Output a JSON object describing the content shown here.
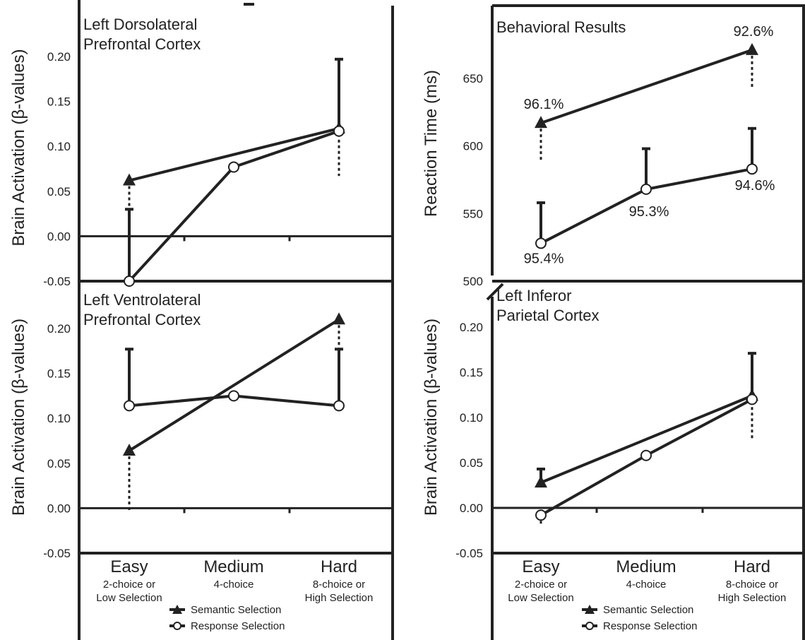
{
  "conditions": [
    {
      "name": "Easy",
      "sub1": "2-choice or",
      "sub2": "Low Selection"
    },
    {
      "name": "Medium",
      "sub1": "4-choice",
      "sub2": ""
    },
    {
      "name": "Hard",
      "sub1": "8-choice or",
      "sub2": "High Selection"
    }
  ],
  "legend": {
    "semantic": "Semantic Selection",
    "response": "Response Selection"
  },
  "colors": {
    "ink": "#222222",
    "background": "#ffffff"
  },
  "chart_data": [
    {
      "id": "dlpfc",
      "type": "line",
      "title_lines": [
        "Left Dorsolateral",
        "Prefrontal Cortex"
      ],
      "ylabel": "Brain Activation (β-values)",
      "ylim": [
        -0.05,
        0.2
      ],
      "yticks": [
        -0.05,
        0.0,
        0.05,
        0.1,
        0.15,
        0.2
      ],
      "yticklabels": [
        "-0.05",
        "0.00",
        "0.05",
        "0.10",
        "0.15",
        "0.20"
      ],
      "zero_line": true,
      "categories": [
        "Easy",
        "Medium",
        "Hard"
      ],
      "series": [
        {
          "name": "Semantic Selection",
          "marker": "triangle",
          "points": [
            {
              "x": 0,
              "y": 0.062
            },
            {
              "x": 2,
              "y": 0.12
            }
          ],
          "errors": [
            {
              "x": 0,
              "lo": 0.008
            },
            {
              "x": 2,
              "lo": 0.067
            }
          ]
        },
        {
          "name": "Response Selection",
          "marker": "circle",
          "points": [
            {
              "x": 0,
              "y": -0.05
            },
            {
              "x": 1,
              "y": 0.077
            },
            {
              "x": 2,
              "y": 0.117
            }
          ],
          "errors": [
            {
              "x": 0,
              "hi": 0.03
            },
            {
              "x": 2,
              "hi": 0.197
            }
          ]
        }
      ]
    },
    {
      "id": "behavior",
      "type": "line",
      "title_lines": [
        "Behavioral Results"
      ],
      "ylabel": "Reaction Time (ms)",
      "ylim": [
        500,
        680
      ],
      "yticks": [
        500,
        550,
        600,
        650
      ],
      "yticklabels": [
        "500",
        "550",
        "600",
        "650"
      ],
      "zero_line": false,
      "categories": [
        "Easy",
        "Medium",
        "Hard"
      ],
      "series": [
        {
          "name": "Semantic Selection",
          "marker": "triangle",
          "points": [
            {
              "x": 0,
              "y": 617
            },
            {
              "x": 2,
              "y": 671
            }
          ],
          "errors": [
            {
              "x": 0,
              "lo": 588
            },
            {
              "x": 2,
              "lo": 642
            }
          ],
          "labels": [
            "96.1%",
            null,
            "92.6%"
          ]
        },
        {
          "name": "Response Selection",
          "marker": "circle",
          "points": [
            {
              "x": 0,
              "y": 528
            },
            {
              "x": 1,
              "y": 568
            },
            {
              "x": 2,
              "y": 583
            }
          ],
          "errors": [
            {
              "x": 0,
              "hi": 558
            },
            {
              "x": 1,
              "hi": 598
            },
            {
              "x": 2,
              "hi": 613
            }
          ],
          "labels": [
            "95.4%",
            "95.3%",
            "94.6%"
          ]
        }
      ]
    },
    {
      "id": "vlpfc",
      "type": "line",
      "title_lines": [
        "Left Ventrolateral",
        "Prefrontal Cortex"
      ],
      "ylabel": "Brain Activation (β-values)",
      "ylim": [
        -0.05,
        0.22
      ],
      "yticks": [
        -0.05,
        0.0,
        0.05,
        0.1,
        0.15,
        0.2
      ],
      "yticklabels": [
        "-0.05",
        "0.00",
        "0.05",
        "0.10",
        "0.15",
        "0.20"
      ],
      "zero_line": true,
      "categories": [
        "Easy",
        "Medium",
        "Hard"
      ],
      "series": [
        {
          "name": "Semantic Selection",
          "marker": "triangle",
          "points": [
            {
              "x": 0,
              "y": 0.064
            },
            {
              "x": 2,
              "y": 0.21
            }
          ],
          "errors": [
            {
              "x": 0,
              "lo": -0.003
            },
            {
              "x": 2,
              "lo": 0.143
            }
          ]
        },
        {
          "name": "Response Selection",
          "marker": "circle",
          "points": [
            {
              "x": 0,
              "y": 0.114
            },
            {
              "x": 1,
              "y": 0.125
            },
            {
              "x": 2,
              "y": 0.114
            }
          ],
          "errors": [
            {
              "x": 0,
              "hi": 0.177
            },
            {
              "x": 2,
              "hi": 0.177
            }
          ]
        }
      ]
    },
    {
      "id": "ipc",
      "type": "line",
      "title_lines": [
        "Left Inferor",
        "Parietal Cortex"
      ],
      "ylabel": "Brain Activation (β-values)",
      "ylim": [
        -0.05,
        0.22
      ],
      "yticks": [
        -0.05,
        0.0,
        0.05,
        0.1,
        0.15,
        0.2
      ],
      "yticklabels": [
        "-0.05",
        "0.00",
        "0.05",
        "0.10",
        "0.15",
        "0.20"
      ],
      "zero_line": true,
      "categories": [
        "Easy",
        "Medium",
        "Hard"
      ],
      "series": [
        {
          "name": "Semantic Selection",
          "marker": "triangle",
          "points": [
            {
              "x": 0,
              "y": 0.028
            },
            {
              "x": 2,
              "y": 0.124
            }
          ],
          "errors": [
            {
              "x": 0,
              "hi": 0.043
            },
            {
              "x": 2,
              "lo": 0.076
            }
          ]
        },
        {
          "name": "Response Selection",
          "marker": "circle",
          "points": [
            {
              "x": 0,
              "y": -0.008
            },
            {
              "x": 1,
              "y": 0.058
            },
            {
              "x": 2,
              "y": 0.12
            }
          ],
          "errors": [
            {
              "x": 0,
              "lo": -0.02
            },
            {
              "x": 2,
              "hi": 0.171
            }
          ]
        }
      ]
    }
  ]
}
